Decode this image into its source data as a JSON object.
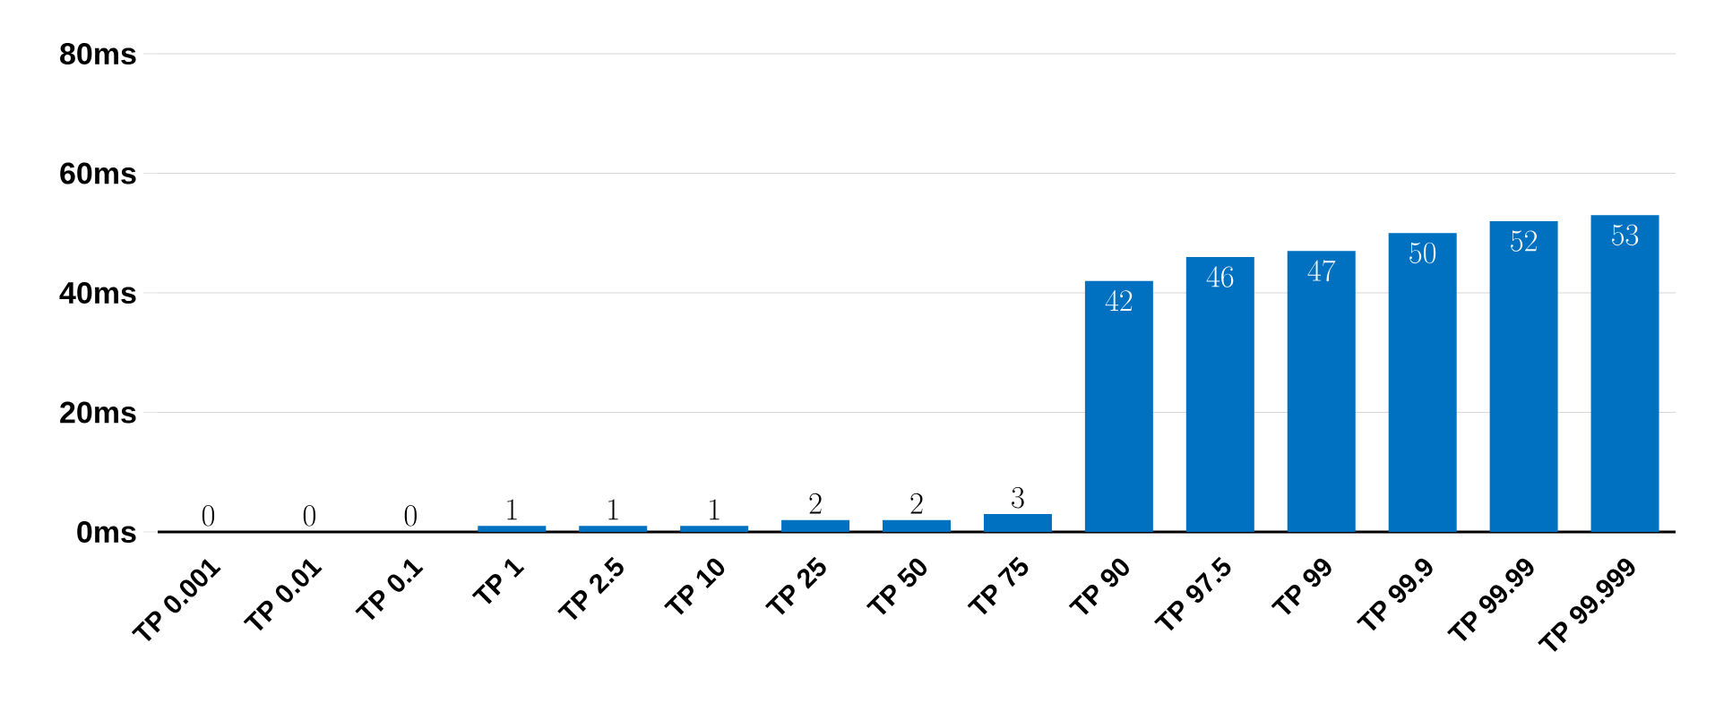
{
  "chart_data": {
    "type": "bar",
    "categories": [
      "TP 0.001",
      "TP 0.01",
      "TP 0.1",
      "TP 1",
      "TP 2.5",
      "TP 10",
      "TP 25",
      "TP 50",
      "TP 75",
      "TP 90",
      "TP 97.5",
      "TP 99",
      "TP 99.9",
      "TP 99.99",
      "TP 99.999"
    ],
    "values": [
      0,
      0,
      0,
      1,
      1,
      1,
      2,
      2,
      3,
      42,
      46,
      47,
      50,
      52,
      53
    ],
    "color": "#0070c0",
    "ylim": [
      0,
      80
    ],
    "yticks": [
      {
        "value": 0,
        "label": "0ms"
      },
      {
        "value": 20,
        "label": "20ms"
      },
      {
        "value": 40,
        "label": "40ms"
      },
      {
        "value": 60,
        "label": "60ms"
      },
      {
        "value": 80,
        "label": "80ms"
      }
    ],
    "grid": "y",
    "data_labels": true
  }
}
